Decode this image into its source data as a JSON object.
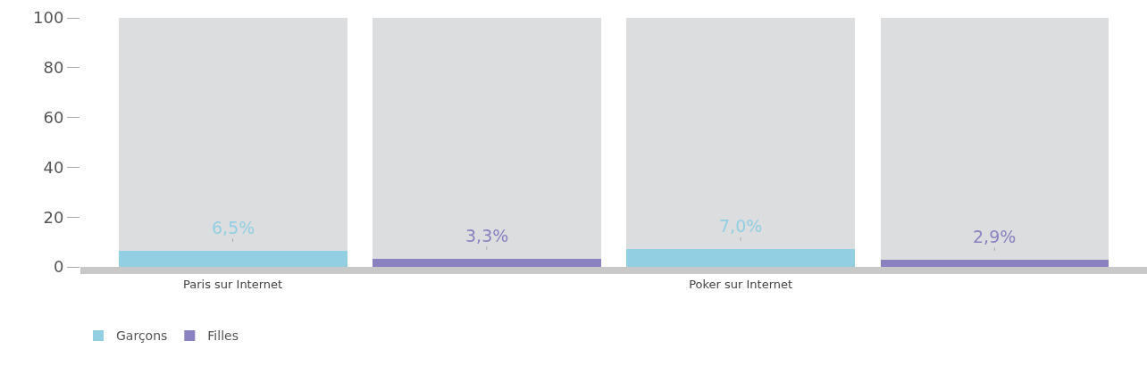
{
  "chart_data": {
    "type": "bar",
    "categories": [
      "Paris sur Internet",
      null,
      "Poker sur Internet",
      null
    ],
    "series": [
      {
        "name": "Garçons",
        "color": "#93cfe3",
        "values": [
          6.5,
          null,
          7.0,
          null
        ],
        "value_labels": [
          "6,5%",
          null,
          "7,0%",
          null
        ]
      },
      {
        "name": "Filles",
        "color": "#8a82c0",
        "values": [
          null,
          3.3,
          null,
          2.9
        ],
        "value_labels": [
          null,
          "3,3%",
          null,
          "2,9%"
        ]
      },
      {
        "color": "#dcdddf",
        "values": [
          93.5,
          96.7,
          93.0,
          97.1
        ]
      }
    ],
    "stacked": true,
    "ylim": [
      0,
      100
    ],
    "yticks": [
      0,
      20,
      40,
      60,
      80,
      100
    ],
    "grid": false,
    "legend": "bottom left"
  }
}
